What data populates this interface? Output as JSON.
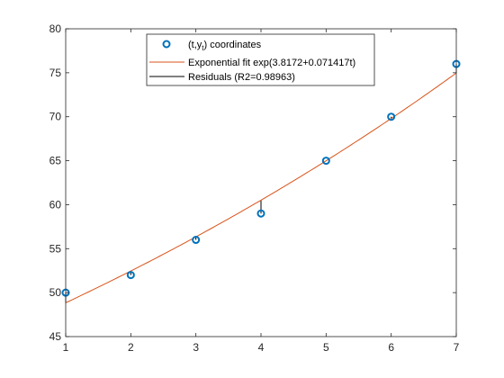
{
  "chart_data": {
    "type": "scatter",
    "x": [
      1,
      2,
      3,
      4,
      5,
      6,
      7
    ],
    "series": [
      {
        "name": "(t,y_t) coordinates",
        "kind": "points",
        "values": [
          50,
          52,
          56,
          59,
          65,
          70,
          76
        ],
        "color": "#0072BD"
      },
      {
        "name": "Exponential fit exp(3.8172+0.071417t)",
        "kind": "line",
        "fit": {
          "a": 3.8172,
          "b": 0.071417
        },
        "color": "#D95319"
      },
      {
        "name": "Residuals (R2=0.98963)",
        "kind": "residual-segments",
        "color": "#000000"
      }
    ],
    "xlim": [
      1,
      7
    ],
    "ylim": [
      45,
      80
    ],
    "xticks": [
      1,
      2,
      3,
      4,
      5,
      6,
      7
    ],
    "yticks": [
      45,
      50,
      55,
      60,
      65,
      70,
      75,
      80
    ],
    "grid": false,
    "legend_position": "top-center",
    "title": "",
    "xlabel": "",
    "ylabel": ""
  },
  "legend": {
    "points_label_prefix": "(t,y",
    "points_label_sub": "t",
    "points_label_suffix": ") coordinates",
    "fit_label": "Exponential fit exp(3.8172+0.071417t)",
    "residual_label": "Residuals (R2=0.98963)"
  }
}
